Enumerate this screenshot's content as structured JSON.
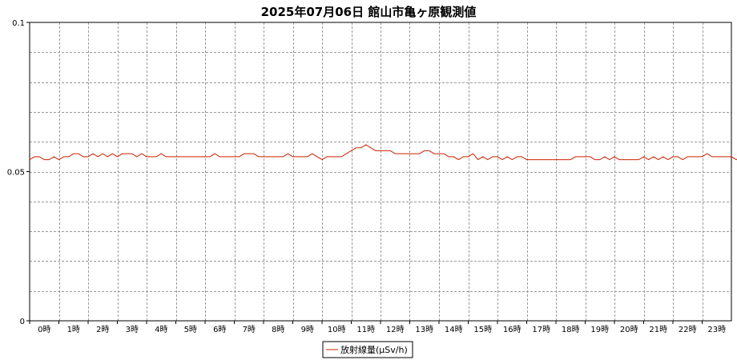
{
  "chart_data": {
    "type": "line",
    "title": "2025年07月06日 館山市亀ヶ原観測値",
    "xlabel": "",
    "ylabel": "",
    "x_tick_labels": [
      "0時",
      "1時",
      "2時",
      "3時",
      "4時",
      "5時",
      "6時",
      "7時",
      "8時",
      "9時",
      "10時",
      "11時",
      "12時",
      "13時",
      "14時",
      "15時",
      "16時",
      "17時",
      "18時",
      "19時",
      "20時",
      "21時",
      "22時",
      "23時"
    ],
    "y_tick_labels": [
      "0",
      "0.05",
      "0.1"
    ],
    "ylim": [
      0,
      0.1
    ],
    "xlim": [
      0,
      24
    ],
    "grid": true,
    "legend_position": "bottom-center",
    "series": [
      {
        "name": "放射線量(μSv/h)",
        "color": "#cc2200",
        "interval_minutes": 10,
        "values": [
          0.054,
          0.055,
          0.055,
          0.054,
          0.054,
          0.055,
          0.054,
          0.055,
          0.055,
          0.056,
          0.056,
          0.055,
          0.055,
          0.056,
          0.055,
          0.056,
          0.055,
          0.056,
          0.055,
          0.056,
          0.056,
          0.056,
          0.055,
          0.056,
          0.055,
          0.055,
          0.055,
          0.056,
          0.055,
          0.055,
          0.055,
          0.055,
          0.055,
          0.055,
          0.055,
          0.055,
          0.055,
          0.055,
          0.056,
          0.055,
          0.055,
          0.055,
          0.055,
          0.055,
          0.056,
          0.056,
          0.056,
          0.055,
          0.055,
          0.055,
          0.055,
          0.055,
          0.055,
          0.056,
          0.055,
          0.055,
          0.055,
          0.055,
          0.056,
          0.055,
          0.054,
          0.055,
          0.055,
          0.055,
          0.055,
          0.056,
          0.057,
          0.058,
          0.058,
          0.059,
          0.058,
          0.057,
          0.057,
          0.057,
          0.057,
          0.056,
          0.056,
          0.056,
          0.056,
          0.056,
          0.056,
          0.057,
          0.057,
          0.056,
          0.056,
          0.056,
          0.055,
          0.055,
          0.054,
          0.055,
          0.055,
          0.056,
          0.054,
          0.055,
          0.054,
          0.055,
          0.055,
          0.054,
          0.055,
          0.054,
          0.055,
          0.055,
          0.054,
          0.054,
          0.054,
          0.054,
          0.054,
          0.054,
          0.054,
          0.054,
          0.054,
          0.054,
          0.055,
          0.055,
          0.055,
          0.055,
          0.054,
          0.054,
          0.055,
          0.054,
          0.055,
          0.054,
          0.054,
          0.054,
          0.054,
          0.054,
          0.055,
          0.054,
          0.055,
          0.054,
          0.055,
          0.054,
          0.055,
          0.055,
          0.054,
          0.055,
          0.055,
          0.055,
          0.055,
          0.056,
          0.055,
          0.055,
          0.055,
          0.055,
          0.055,
          0.054,
          0.055,
          0.054,
          0.055,
          0.054
        ]
      }
    ]
  }
}
